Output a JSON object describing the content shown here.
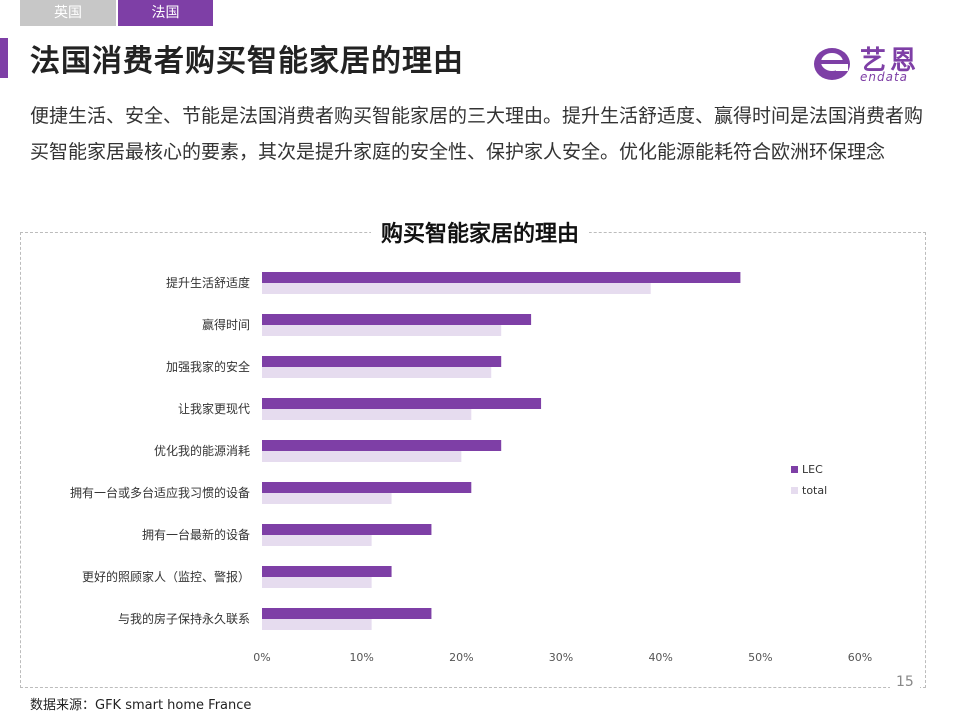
{
  "tabs": [
    {
      "label": "英国",
      "active": false
    },
    {
      "label": "法国",
      "active": true
    }
  ],
  "header": {
    "title": "法国消费者购买智能家居的理由"
  },
  "logo": {
    "cn": "艺恩",
    "en": "endata",
    "icon": "endata-logo-mark"
  },
  "intro": "便捷生活、安全、节能是法国消费者购买智能家居的三大理由。提升生活舒适度、赢得时间是法国消费者购买智能家居最核心的要素，其次是提升家庭的安全性、保护家人安全。优化能源能耗符合欧洲环保理念",
  "chart_data": {
    "type": "bar",
    "orientation": "horizontal",
    "title": "购买智能家居的理由",
    "categories": [
      "提升生活舒适度",
      "赢得时间",
      "加强我家的安全",
      "让我家更现代",
      "优化我的能源消耗",
      "拥有一台或多台适应我习惯的设备",
      "拥有一台最新的设备",
      "更好的照顾家人（监控、警报）",
      "与我的房子保持永久联系"
    ],
    "series": [
      {
        "name": "LEC",
        "color": "#7e3fa6",
        "values": [
          48,
          27,
          24,
          28,
          24,
          21,
          17,
          13,
          17
        ]
      },
      {
        "name": "total",
        "color": "#e6dcef",
        "values": [
          39,
          24,
          23,
          21,
          20,
          13,
          11,
          11,
          11
        ]
      }
    ],
    "xlim": [
      0,
      60
    ],
    "xticks": [
      "0%",
      "10%",
      "20%",
      "30%",
      "40%",
      "50%",
      "60%"
    ],
    "grid": false,
    "legend": "right"
  },
  "footer": {
    "source": "数据来源：GFK smart home France",
    "page": "15"
  }
}
